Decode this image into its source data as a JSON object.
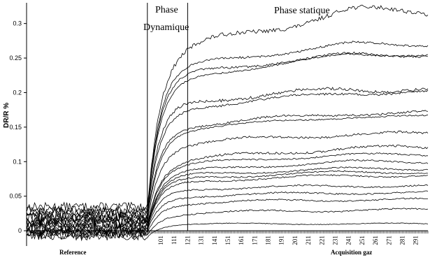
{
  "chart_data": {
    "type": "line",
    "title": "",
    "ylabel": "DR/R %",
    "xlabel": "",
    "ylim": [
      -0.01,
      0.33
    ],
    "xlim": [
      1,
      300
    ],
    "yticks": [
      0,
      0.05,
      0.1,
      0.15,
      0.2,
      0.25,
      0.3
    ],
    "ytick_labels": [
      "0",
      "0.05",
      "0.1",
      "0.15",
      "0.2",
      "0.25",
      "0.3"
    ],
    "xticks": [
      101,
      111,
      121,
      131,
      141,
      151,
      161,
      171,
      181,
      191,
      201,
      211,
      221,
      231,
      241,
      251,
      261,
      271,
      281,
      291
    ],
    "xtick_labels": [
      "101",
      "111",
      "121",
      "131",
      "141",
      "151",
      "161",
      "171",
      "181",
      "191",
      "201",
      "211",
      "221",
      "231",
      "241",
      "251",
      "261",
      "271",
      "281",
      "291"
    ],
    "grid": false,
    "legend": "none",
    "line_color": "#000000",
    "phase_boundaries": [
      91,
      121
    ],
    "annotations": {
      "phase_top": "Phase",
      "phase_dynamic": "Dynamique",
      "phase_static": "Phase statique",
      "reference": "Reference",
      "acquisition": "Acquisition gaz"
    },
    "series": [
      {
        "baseline": 0.035,
        "plateau": 0.255,
        "final": 0.318,
        "ripple": 0.006
      },
      {
        "baseline": 0.03,
        "plateau": 0.235,
        "final": 0.27,
        "ripple": 0.003
      },
      {
        "baseline": 0.028,
        "plateau": 0.225,
        "final": 0.255,
        "ripple": 0.003
      },
      {
        "baseline": 0.025,
        "plateau": 0.215,
        "final": 0.255,
        "ripple": 0.002
      },
      {
        "baseline": 0.022,
        "plateau": 0.185,
        "final": 0.205,
        "ripple": 0.004
      },
      {
        "baseline": 0.02,
        "plateau": 0.175,
        "final": 0.2,
        "ripple": 0.003
      },
      {
        "baseline": 0.018,
        "plateau": 0.15,
        "final": 0.17,
        "ripple": 0.003
      },
      {
        "baseline": 0.016,
        "plateau": 0.145,
        "final": 0.165,
        "ripple": 0.002
      },
      {
        "baseline": 0.014,
        "plateau": 0.125,
        "final": 0.14,
        "ripple": 0.003
      },
      {
        "baseline": 0.012,
        "plateau": 0.1,
        "final": 0.12,
        "ripple": 0.003
      },
      {
        "baseline": 0.01,
        "plateau": 0.095,
        "final": 0.11,
        "ripple": 0.002
      },
      {
        "baseline": 0.008,
        "plateau": 0.085,
        "final": 0.1,
        "ripple": 0.002
      },
      {
        "baseline": 0.006,
        "plateau": 0.08,
        "final": 0.09,
        "ripple": 0.002
      },
      {
        "baseline": 0.004,
        "plateau": 0.075,
        "final": 0.085,
        "ripple": 0.002
      },
      {
        "baseline": 0.002,
        "plateau": 0.07,
        "final": 0.08,
        "ripple": 0.002
      },
      {
        "baseline": 0.0,
        "plateau": 0.06,
        "final": 0.065,
        "ripple": 0.002
      },
      {
        "baseline": -0.002,
        "plateau": 0.05,
        "final": 0.055,
        "ripple": 0.002
      },
      {
        "baseline": -0.004,
        "plateau": 0.04,
        "final": 0.045,
        "ripple": 0.002
      },
      {
        "baseline": -0.006,
        "plateau": 0.025,
        "final": 0.03,
        "ripple": 0.002
      },
      {
        "baseline": -0.008,
        "plateau": 0.01,
        "final": 0.01,
        "ripple": 0.001
      }
    ]
  }
}
